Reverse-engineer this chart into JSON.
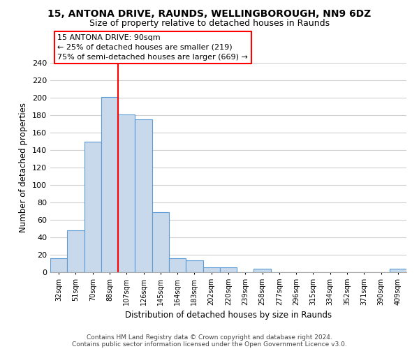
{
  "title_line1": "15, ANTONA DRIVE, RAUNDS, WELLINGBOROUGH, NN9 6DZ",
  "title_line2": "Size of property relative to detached houses in Raunds",
  "xlabel": "Distribution of detached houses by size in Raunds",
  "ylabel": "Number of detached properties",
  "footer_line1": "Contains HM Land Registry data © Crown copyright and database right 2024.",
  "footer_line2": "Contains public sector information licensed under the Open Government Licence v3.0.",
  "bin_labels": [
    "32sqm",
    "51sqm",
    "70sqm",
    "88sqm",
    "107sqm",
    "126sqm",
    "145sqm",
    "164sqm",
    "183sqm",
    "202sqm",
    "220sqm",
    "239sqm",
    "258sqm",
    "277sqm",
    "296sqm",
    "315sqm",
    "334sqm",
    "352sqm",
    "371sqm",
    "390sqm",
    "409sqm"
  ],
  "bar_heights": [
    16,
    48,
    150,
    201,
    181,
    175,
    69,
    16,
    14,
    6,
    6,
    0,
    4,
    0,
    0,
    0,
    0,
    0,
    0,
    0,
    4
  ],
  "bar_color": "#c9d9ec",
  "bar_edge_color": "#5b9bd5",
  "property_line_x": 4,
  "property_line_label": "15 ANTONA DRIVE: 90sqm",
  "annotation_line1": "← 25% of detached houses are smaller (219)",
  "annotation_line2": "75% of semi-detached houses are larger (669) →",
  "annotation_box_color": "white",
  "annotation_box_edge_color": "red",
  "line_color": "red",
  "ylim": [
    0,
    240
  ],
  "yticks": [
    0,
    20,
    40,
    60,
    80,
    100,
    120,
    140,
    160,
    180,
    200,
    220,
    240
  ],
  "background_color": "white",
  "grid_color": "#d0d0d0"
}
